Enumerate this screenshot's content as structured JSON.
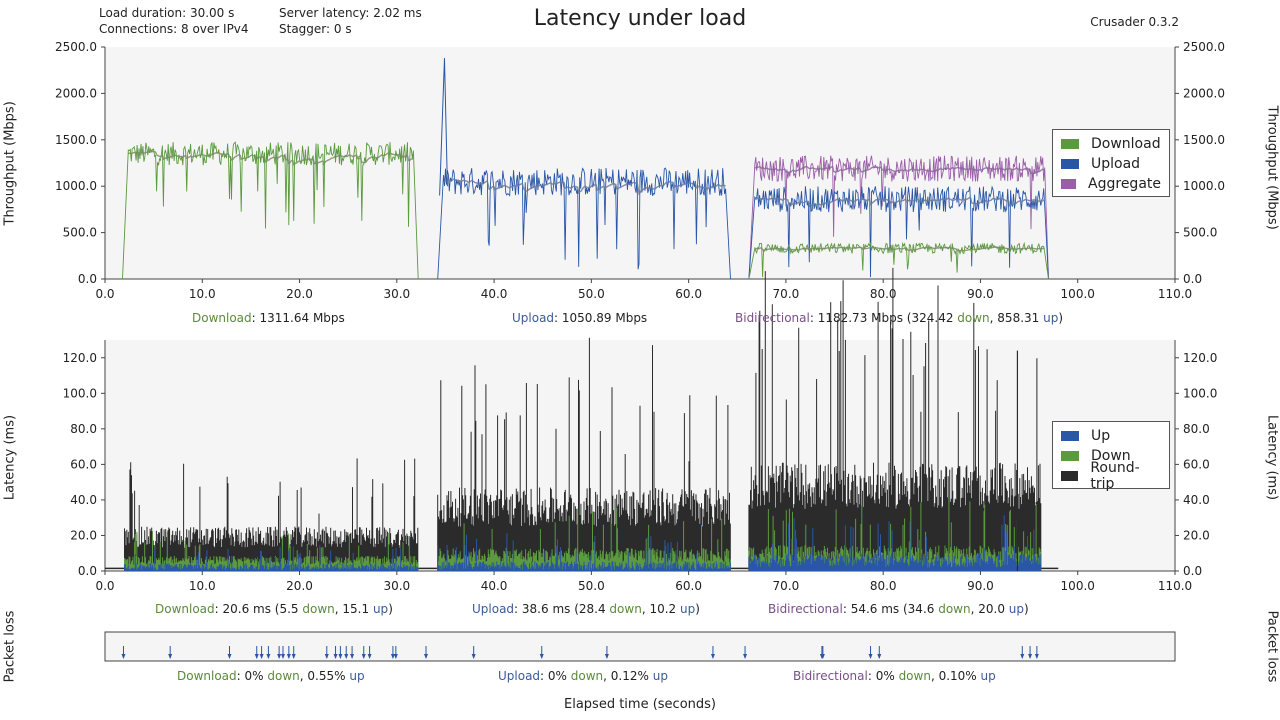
{
  "header": {
    "load_duration": "Load duration: 30.00 s",
    "connections": "Connections: 8 over IPv4",
    "server_latency": "Server latency: 2.02 ms",
    "stagger": "Stagger: 0 s",
    "title": "Latency under load",
    "version": "Crusader 0.3.2"
  },
  "colors": {
    "download": "#5b9a3e",
    "upload": "#2a56a8",
    "aggregate": "#9a5ea8",
    "roundtrip": "#2b2b2b",
    "bg": "#f5f5f5"
  },
  "chart_data": [
    {
      "type": "line",
      "name": "throughput",
      "ylabel": "Throughput (Mbps)",
      "xlim": [
        0,
        110
      ],
      "ylim": [
        0,
        2500
      ],
      "xticks": [
        "0.0",
        "10.0",
        "20.0",
        "30.0",
        "40.0",
        "50.0",
        "60.0",
        "70.0",
        "80.0",
        "90.0",
        "100.0",
        "110.0"
      ],
      "yticks": [
        "0.0",
        "500.0",
        "1000.0",
        "1500.0",
        "2000.0",
        "2500.0"
      ],
      "legend": [
        {
          "name": "Download",
          "color": "#5b9a3e"
        },
        {
          "name": "Upload",
          "color": "#2a56a8"
        },
        {
          "name": "Aggregate",
          "color": "#9a5ea8"
        }
      ],
      "legend_position": "right",
      "phases": [
        {
          "name": "Download",
          "start": 1.8,
          "end": 32.2,
          "mean": 1350,
          "amp": 180
        },
        {
          "name": "Upload",
          "start": 34.2,
          "end": 64.3,
          "mean": 1050,
          "amp": 220
        },
        {
          "name": "Bidirectional",
          "start": 66.2,
          "end": 97.0,
          "down_mean": 330,
          "up_mean": 860,
          "agg_mean": 1190
        }
      ],
      "spike": {
        "x": 34.9,
        "y": 2380
      },
      "summary": {
        "download": {
          "label": "Download",
          "value": ": 1311.64 Mbps"
        },
        "upload": {
          "label": "Upload",
          "value": ": 1050.89 Mbps"
        },
        "bidirectional": {
          "label": "Bidirectional",
          "v1": ": 1182.73 Mbps (324.42 ",
          "down": "down",
          "v2": ", 858.31 ",
          "up": "up",
          "v3": ")"
        }
      }
    },
    {
      "type": "area",
      "name": "latency",
      "ylabel": "Latency (ms)",
      "xlim": [
        0,
        110
      ],
      "ylim": [
        0,
        130
      ],
      "xticks": [
        "0.0",
        "10.0",
        "20.0",
        "30.0",
        "40.0",
        "50.0",
        "60.0",
        "70.0",
        "80.0",
        "90.0",
        "100.0",
        "110.0"
      ],
      "yticks": [
        "0.0",
        "20.0",
        "40.0",
        "60.0",
        "80.0",
        "100.0",
        "120.0"
      ],
      "legend": [
        {
          "name": "Up",
          "color": "#2a56a8"
        },
        {
          "name": "Down",
          "color": "#5b9a3e"
        },
        {
          "name": "Round-trip",
          "color": "#2b2b2b"
        }
      ],
      "legend_position": "right",
      "phases": [
        {
          "name": "Download",
          "start": 2,
          "end": 32.2,
          "rtt": 20.6,
          "down": 5.5,
          "up": 15.1
        },
        {
          "name": "Upload",
          "start": 34.2,
          "end": 64.3,
          "rtt": 38.6,
          "down": 28.4,
          "up": 10.2
        },
        {
          "name": "Bidirectional",
          "start": 66.2,
          "end": 96.2,
          "rtt": 54.6,
          "down": 34.6,
          "up": 20.0
        }
      ],
      "peak": {
        "x": 93.8,
        "y": 124
      },
      "summary": {
        "download": {
          "label": "Download",
          "v1": ": 20.6 ms (5.5 ",
          "down": "down",
          "v2": ", 15.1 ",
          "up": "up",
          "v3": ")"
        },
        "upload": {
          "label": "Upload",
          "v1": ": 38.6 ms (28.4 ",
          "down": "down",
          "v2": ", 10.2 ",
          "up": "up",
          "v3": ")"
        },
        "bidirectional": {
          "label": "Bidirectional",
          "v1": ": 54.6 ms (34.6 ",
          "down": "down",
          "v2": ", 20.0 ",
          "up": "up",
          "v3": ")"
        }
      }
    },
    {
      "type": "scatter",
      "name": "packet-loss",
      "ylabel": "Packet loss",
      "xlim": [
        0,
        110
      ],
      "loss_events_x": [
        1.9,
        6.7,
        12.8,
        15.6,
        16.1,
        16.8,
        17.9,
        18.3,
        18.9,
        19.4,
        22.8,
        23.7,
        24.2,
        24.8,
        25.4,
        26.6,
        27.2,
        29.6,
        29.9,
        33.0,
        37.9,
        44.9,
        51.6,
        62.5,
        65.8,
        73.7,
        73.8,
        78.7,
        79.6,
        94.3,
        95.1,
        95.8
      ],
      "summary": {
        "download": {
          "label": "Download",
          "v1": ": 0% ",
          "down": "down",
          "v2": ", 0.55% ",
          "up": "up",
          "v3": ""
        },
        "upload": {
          "label": "Upload",
          "v1": ": 0% ",
          "down": "down",
          "v2": ", 0.12% ",
          "up": "up",
          "v3": ""
        },
        "bidirectional": {
          "label": "Bidirectional",
          "v1": ": 0% ",
          "down": "down",
          "v2": ", 0.10% ",
          "up": "up",
          "v3": ""
        }
      }
    }
  ],
  "xlabel": "Elapsed time (seconds)"
}
